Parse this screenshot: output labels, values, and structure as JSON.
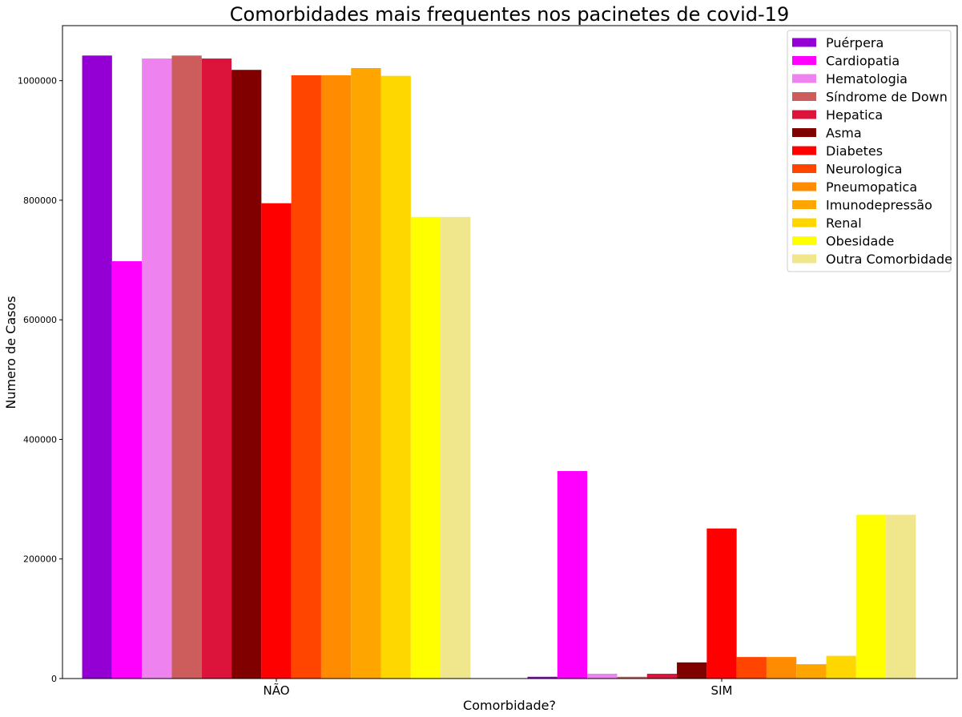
{
  "chart_data": {
    "type": "bar",
    "title": "Comorbidades mais frequentes nos pacinetes de covid-19",
    "xlabel": "Comorbidade?",
    "ylabel": "Numero de Casos",
    "categories": [
      "NÃO",
      "SIM"
    ],
    "ylim": [
      0,
      1092000
    ],
    "yticks": [
      0,
      200000,
      400000,
      600000,
      800000,
      1000000
    ],
    "ytick_labels": [
      "0",
      "200000",
      "400000",
      "600000",
      "800000",
      "1000000"
    ],
    "grid": false,
    "legend_position": "top-right",
    "series": [
      {
        "name": "Puérpera",
        "color": "#9400D3",
        "values": [
          1042000,
          3000
        ]
      },
      {
        "name": "Cardiopatia",
        "color": "#FF00FF",
        "values": [
          698000,
          347000
        ]
      },
      {
        "name": "Hematologia",
        "color": "#EE82EE",
        "values": [
          1037000,
          8000
        ]
      },
      {
        "name": "Síndrome de Down",
        "color": "#CD5C5C",
        "values": [
          1042000,
          3000
        ]
      },
      {
        "name": "Hepatica",
        "color": "#DC143C",
        "values": [
          1037000,
          8000
        ]
      },
      {
        "name": "Asma",
        "color": "#800000",
        "values": [
          1018000,
          27000
        ]
      },
      {
        "name": "Diabetes",
        "color": "#FF0000",
        "values": [
          795000,
          251000
        ]
      },
      {
        "name": "Neurologica",
        "color": "#FF4500",
        "values": [
          1009000,
          36000
        ]
      },
      {
        "name": "Pneumopatica",
        "color": "#FF8C00",
        "values": [
          1009000,
          36000
        ]
      },
      {
        "name": "Imunodepressão",
        "color": "#FFA500",
        "values": [
          1021000,
          24000
        ]
      },
      {
        "name": "Renal",
        "color": "#FFD700",
        "values": [
          1008000,
          38000
        ]
      },
      {
        "name": "Obesidade",
        "color": "#FFFF00",
        "values": [
          772000,
          274000
        ]
      },
      {
        "name": "Outra Comorbidade",
        "color": "#F0E68C",
        "values": [
          772000,
          274000
        ]
      }
    ]
  }
}
